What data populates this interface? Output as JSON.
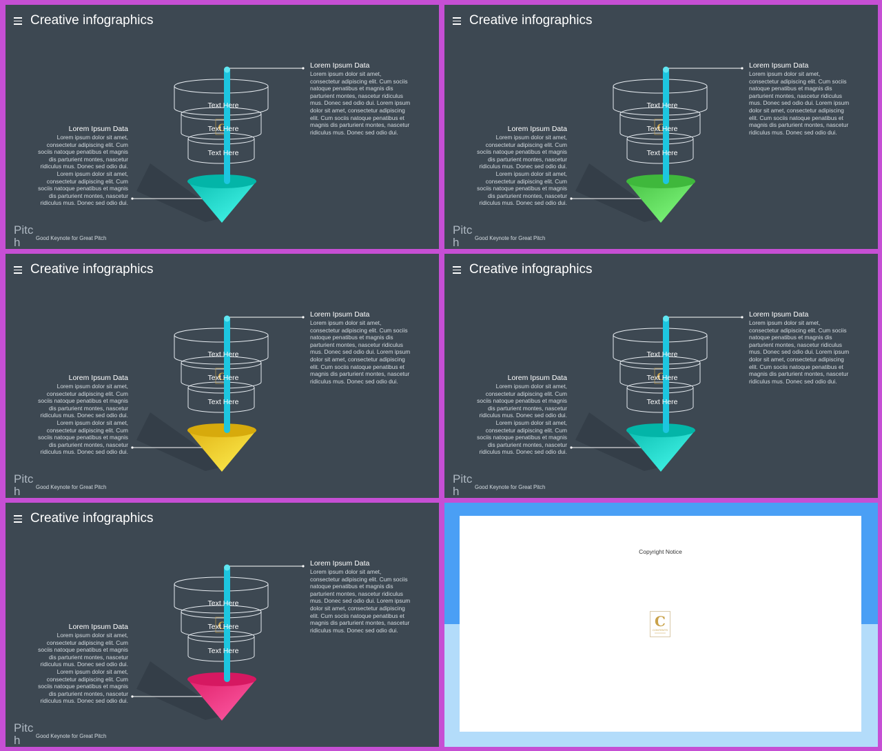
{
  "slides": [
    {
      "title": "Creative infographics",
      "funnel_labels": [
        "Text Here",
        "Text Here",
        "Text Here"
      ],
      "right_title": "Lorem Ipsum Data",
      "right_body": "Lorem ipsum dolor sit amet, consectetur adipiscing elit. Cum sociis natoque penatibus et magnis dis parturient montes, nascetur ridiculus mus. Donec sed odio dui. Lorem ipsum dolor sit amet, consectetur adipiscing elit. Cum sociis natoque penatibus et magnis dis parturient montes, nascetur ridiculus mus. Donec sed odio dui.",
      "left_title": "Lorem Ipsum Data",
      "left_body": "Lorem ipsum dolor sit amet, consectetur adipiscing elit. Cum sociis natoque penatibus et magnis dis parturient montes, nascetur ridiculus mus. Donec sed odio dui. Lorem ipsum dolor sit amet, consectetur adipiscing elit. Cum sociis natoque penatibus et magnis dis parturient montes, nascetur ridiculus mus. Donec sed odio dui.",
      "brand": "Pitch",
      "tagline": "Good Keynote for Great Pitch",
      "cone_color": "#21d3c6"
    },
    {
      "title": "Creative infographics",
      "funnel_labels": [
        "Text Here",
        "Text Here",
        "Text Here"
      ],
      "right_title": "Lorem Ipsum Data",
      "right_body": "Lorem ipsum dolor sit amet, consectetur adipiscing elit. Cum sociis natoque penatibus et magnis dis parturient montes, nascetur ridiculus mus. Donec sed odio dui. Lorem ipsum dolor sit amet, consectetur adipiscing elit. Cum sociis natoque penatibus et magnis dis parturient montes, nascetur ridiculus mus. Donec sed odio dui.",
      "left_title": "Lorem Ipsum Data",
      "left_body": "Lorem ipsum dolor sit amet, consectetur adipiscing elit. Cum sociis natoque penatibus et magnis dis parturient montes, nascetur ridiculus mus. Donec sed odio dui. Lorem ipsum dolor sit amet, consectetur adipiscing elit. Cum sociis natoque penatibus et magnis dis parturient montes, nascetur ridiculus mus. Donec sed odio dui.",
      "brand": "Pitch",
      "tagline": "Good Keynote for Great Pitch",
      "cone_color": "#5dd65a"
    },
    {
      "title": "Creative infographics",
      "funnel_labels": [
        "Text Here",
        "Text Here",
        "Text Here"
      ],
      "right_title": "Lorem Ipsum Data",
      "right_body": "Lorem ipsum dolor sit amet, consectetur adipiscing elit. Cum sociis natoque penatibus et magnis dis parturient montes, nascetur ridiculus mus. Donec sed odio dui. Lorem ipsum dolor sit amet, consectetur adipiscing elit. Cum sociis natoque penatibus et magnis dis parturient montes, nascetur ridiculus mus. Donec sed odio dui.",
      "left_title": "Lorem Ipsum Data",
      "left_body": "Lorem ipsum dolor sit amet, consectetur adipiscing elit. Cum sociis natoque penatibus et magnis dis parturient montes, nascetur ridiculus mus. Donec sed odio dui. Lorem ipsum dolor sit amet, consectetur adipiscing elit. Cum sociis natoque penatibus et magnis dis parturient montes, nascetur ridiculus mus. Donec sed odio dui.",
      "brand": "Pitch",
      "tagline": "Good Keynote for Great Pitch",
      "cone_color": "#f5c82a"
    },
    {
      "title": "Creative infographics",
      "funnel_labels": [
        "Text Here",
        "Text Here",
        "Text Here"
      ],
      "right_title": "Lorem Ipsum Data",
      "right_body": "Lorem ipsum dolor sit amet, consectetur adipiscing elit. Cum sociis natoque penatibus et magnis dis parturient montes, nascetur ridiculus mus. Donec sed odio dui. Lorem ipsum dolor sit amet, consectetur adipiscing elit. Cum sociis natoque penatibus et magnis dis parturient montes, nascetur ridiculus mus. Donec sed odio dui.",
      "left_title": "Lorem Ipsum Data",
      "left_body": "Lorem ipsum dolor sit amet, consectetur adipiscing elit. Cum sociis natoque penatibus et magnis dis parturient montes, nascetur ridiculus mus. Donec sed odio dui. Lorem ipsum dolor sit amet, consectetur adipiscing elit. Cum sociis natoque penatibus et magnis dis parturient montes, nascetur ridiculus mus. Donec sed odio dui.",
      "brand": "Pitch",
      "tagline": "Good Keynote for Great Pitch",
      "cone_color": "#21d3c6"
    },
    {
      "title": "Creative infographics",
      "funnel_labels": [
        "Text Here",
        "Text Here",
        "Text Here"
      ],
      "right_title": "Lorem Ipsum Data",
      "right_body": "Lorem ipsum dolor sit amet, consectetur adipiscing elit. Cum sociis natoque penatibus et magnis dis parturient montes, nascetur ridiculus mus. Donec sed odio dui. Lorem ipsum dolor sit amet, consectetur adipiscing elit. Cum sociis natoque penatibus et magnis dis parturient montes, nascetur ridiculus mus. Donec sed odio dui.",
      "left_title": "Lorem Ipsum Data",
      "left_body": "Lorem ipsum dolor sit amet, consectetur adipiscing elit. Cum sociis natoque penatibus et magnis dis parturient montes, nascetur ridiculus mus. Donec sed odio dui. Lorem ipsum dolor sit amet, consectetur adipiscing elit. Cum sociis natoque penatibus et magnis dis parturient montes, nascetur ridiculus mus. Donec sed odio dui.",
      "brand": "Pitch",
      "tagline": "Good Keynote for Great Pitch",
      "cone_color": "#f4367f"
    }
  ],
  "copyright": {
    "title": "Copyright Notice",
    "logo_letter": "C",
    "logo_text": "CONTENTS"
  },
  "colors": {
    "frame": "#c64fd4",
    "slide_bg": "#3d4852",
    "pillar": "#1dc6e0",
    "copyright_top": "#4a9ff5",
    "copyright_bottom": "#b3dcfa"
  }
}
